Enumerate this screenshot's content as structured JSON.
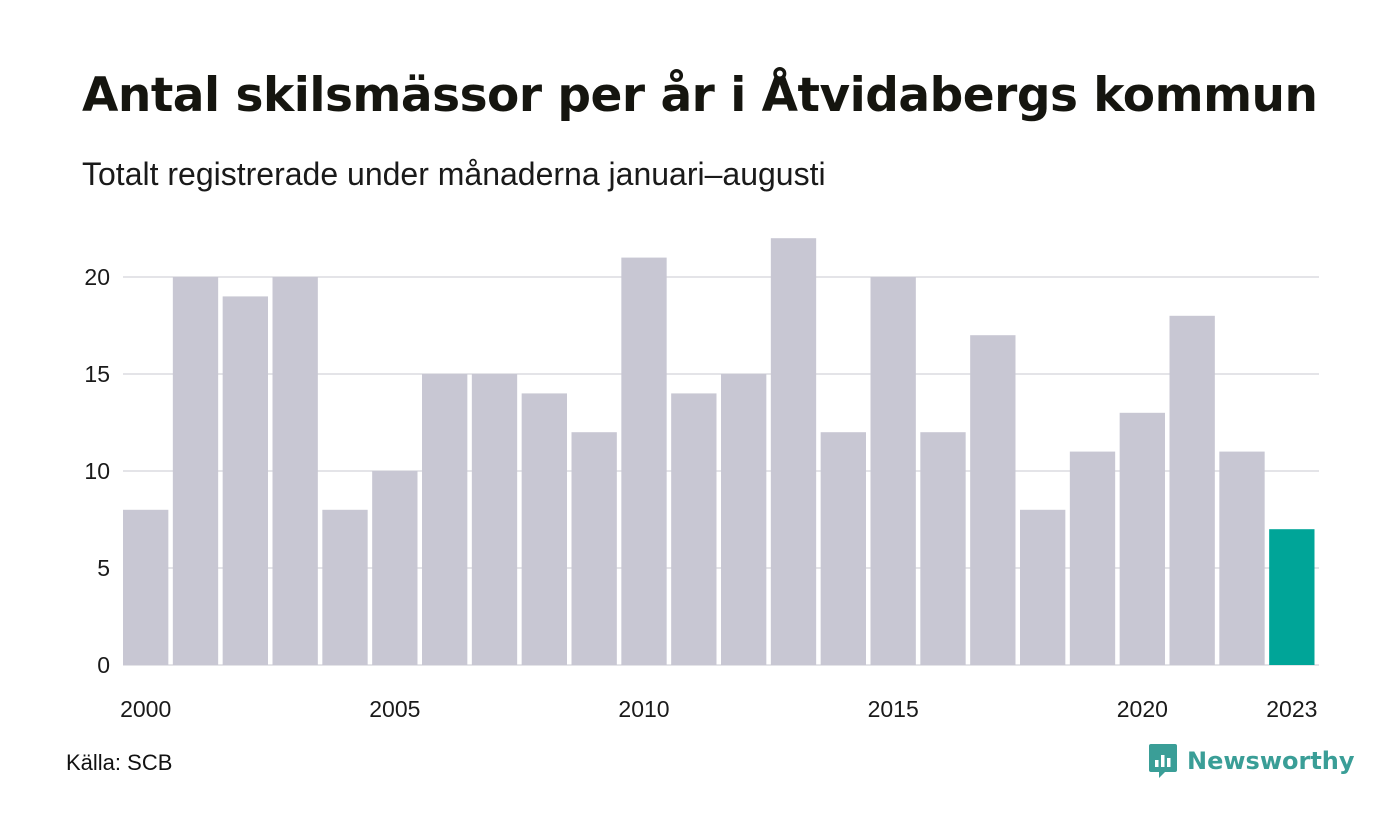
{
  "title": "Antal skilsmässor per år i Åtvidabergs kommun",
  "subtitle": "Totalt registrerade under månaderna januari–augusti",
  "source": "Källa: SCB",
  "brand": {
    "name": "Newsworthy",
    "icon": "newsworthy-logo-icon",
    "color": "#3a9e97"
  },
  "colors": {
    "bar": "#c8c7d3",
    "highlight": "#00a598",
    "grid": "#e4e4e8"
  },
  "chart_data": {
    "type": "bar",
    "x": [
      2000,
      2001,
      2002,
      2003,
      2004,
      2005,
      2006,
      2007,
      2008,
      2009,
      2010,
      2011,
      2012,
      2013,
      2014,
      2015,
      2016,
      2017,
      2018,
      2019,
      2020,
      2021,
      2022,
      2023
    ],
    "values": [
      8,
      20,
      19,
      20,
      8,
      10,
      15,
      15,
      14,
      12,
      21,
      14,
      15,
      22,
      12,
      20,
      12,
      17,
      8,
      11,
      13,
      18,
      11,
      7
    ],
    "highlight": 2023,
    "x_ticks": [
      "2000",
      "2005",
      "2010",
      "2015",
      "2020",
      "2023"
    ],
    "y_ticks": [
      "0",
      "5",
      "10",
      "15",
      "20"
    ],
    "ylim": [
      0,
      22
    ],
    "grid": true,
    "legend": false,
    "xlabel": "",
    "ylabel": ""
  }
}
